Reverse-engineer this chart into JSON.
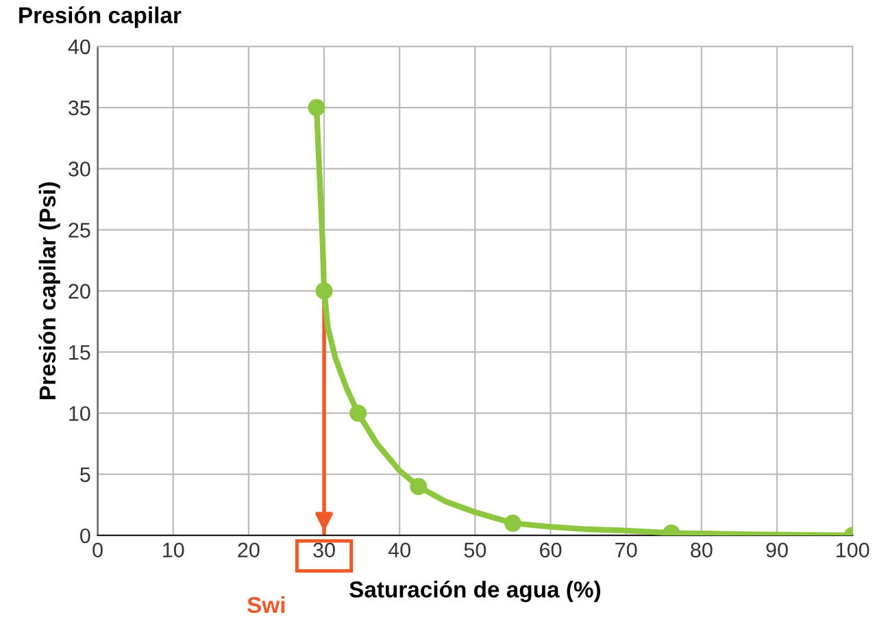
{
  "chart_data": {
    "type": "line",
    "title": "Presión capilar",
    "xlabel": "Saturación de agua (%)",
    "ylabel": "Presión capilar (Psi)",
    "x": [
      29,
      30,
      34.5,
      42.5,
      55,
      76,
      100
    ],
    "series": [
      {
        "marker": "none",
        "color": "#8dc63f",
        "x": [
          29,
          29.5,
          29.8,
          30,
          30.5,
          31.5,
          33,
          34.5,
          37,
          40,
          42.5,
          46,
          50,
          55,
          60,
          65,
          70,
          76,
          85,
          100
        ],
        "values": [
          35,
          28,
          24,
          20,
          17,
          14.5,
          12,
          10,
          7.5,
          5.3,
          4,
          2.8,
          1.9,
          1,
          0.7,
          0.5,
          0.4,
          0.2,
          0.1,
          0
        ]
      },
      {
        "type": "scatter",
        "marker": "circle",
        "color": "#8dc63f",
        "values": [
          35,
          20,
          10,
          4,
          1,
          0.2,
          0
        ]
      }
    ],
    "line_style": "solid",
    "grid": true,
    "xlim": [
      0,
      100
    ],
    "ylim": [
      0,
      40
    ],
    "xticks": [
      0,
      10,
      20,
      30,
      40,
      50,
      60,
      70,
      80,
      90,
      100
    ],
    "yticks": [
      0,
      5,
      10,
      15,
      20,
      25,
      30,
      35,
      40
    ],
    "ref_lines": [
      {
        "axis": "x",
        "value": 30,
        "label": "Swi",
        "color": "#f05a28"
      }
    ]
  }
}
